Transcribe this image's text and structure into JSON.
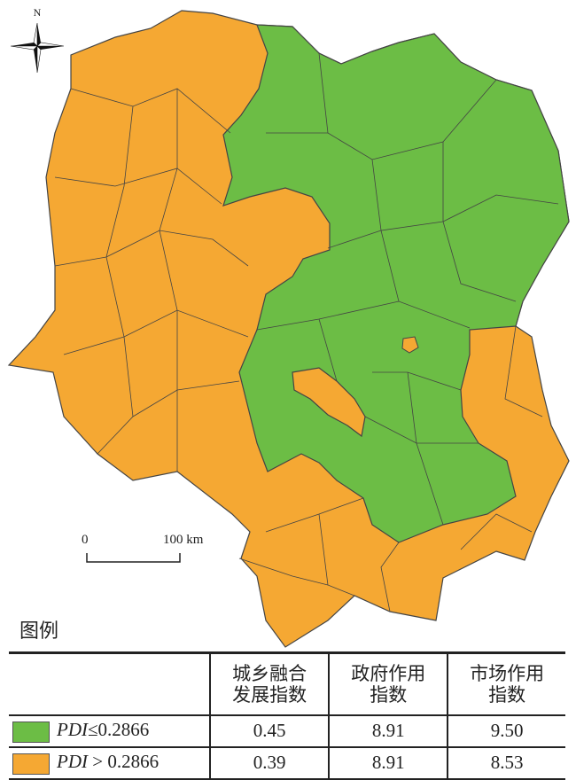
{
  "compass": {
    "label": "N",
    "icon": "north-arrow-icon"
  },
  "scale_bar": {
    "start": "0",
    "end": "100 km"
  },
  "colors": {
    "low": "#6cbd45",
    "high": "#f5a833",
    "border": "#444444"
  },
  "legend": {
    "title": "图例",
    "headers": [
      "城乡融合\n发展指数",
      "政府作用\n指数",
      "市场作用\n指数"
    ],
    "header_lines": [
      [
        "城乡融合",
        "发展指数"
      ],
      [
        "政府作用",
        "指数"
      ],
      [
        "市场作用",
        "指数"
      ]
    ],
    "rows": [
      {
        "var": "PDI",
        "op": "≤",
        "threshold": "0.2866",
        "color": "#6cbd45",
        "values": [
          "0.45",
          "8.91",
          "9.50"
        ]
      },
      {
        "var": "PDI",
        "op": " > ",
        "threshold": "0.2866",
        "color": "#f5a833",
        "values": [
          "0.39",
          "8.91",
          "8.53"
        ]
      }
    ]
  }
}
